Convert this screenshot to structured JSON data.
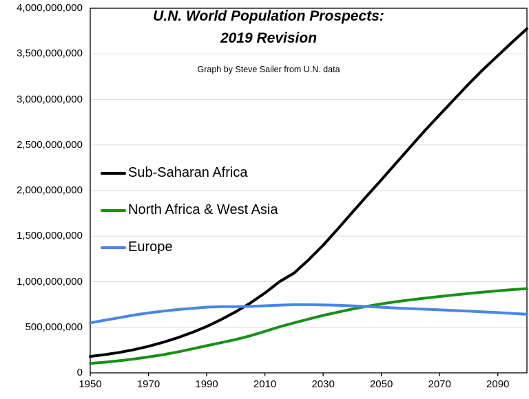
{
  "chart_data": {
    "type": "line",
    "title_line1": "U.N. World Population Prospects:",
    "title_line2": "2019 Revision",
    "subtitle": "Graph by Steve Sailer from U.N. data",
    "x": [
      1950,
      1955,
      1960,
      1965,
      1970,
      1975,
      1980,
      1985,
      1990,
      1995,
      2000,
      2005,
      2010,
      2015,
      2020,
      2025,
      2030,
      2035,
      2040,
      2045,
      2050,
      2055,
      2060,
      2065,
      2070,
      2075,
      2080,
      2085,
      2090,
      2095,
      2100
    ],
    "series": [
      {
        "name": "Sub-Saharan Africa",
        "color": "#000000",
        "values": [
          180000000,
          200000000,
          224000000,
          254000000,
          291000000,
          335000000,
          385000000,
          443000000,
          509000000,
          586000000,
          670000000,
          767000000,
          876000000,
          1000000000,
          1094000000,
          1240000000,
          1400000000,
          1578000000,
          1760000000,
          1940000000,
          2118000000,
          2300000000,
          2480000000,
          2660000000,
          2830000000,
          3000000000,
          3170000000,
          3330000000,
          3480000000,
          3630000000,
          3775000000
        ]
      },
      {
        "name": "North Africa & West Asia",
        "color": "#179117",
        "values": [
          104000000,
          117000000,
          133000000,
          152000000,
          174000000,
          199000000,
          229000000,
          263000000,
          298000000,
          331000000,
          366000000,
          407000000,
          455000000,
          505000000,
          549000000,
          590000000,
          630000000,
          666000000,
          700000000,
          730000000,
          757000000,
          780000000,
          801000000,
          820000000,
          838000000,
          855000000,
          871000000,
          886000000,
          900000000,
          913000000,
          924000000
        ]
      },
      {
        "name": "Europe",
        "color": "#4a86e8",
        "values": [
          549000000,
          577000000,
          605000000,
          634000000,
          657000000,
          677000000,
          694000000,
          708000000,
          721000000,
          727000000,
          726000000,
          729000000,
          736000000,
          743000000,
          748000000,
          748000000,
          745000000,
          741000000,
          735000000,
          728000000,
          720000000,
          712000000,
          705000000,
          698000000,
          691000000,
          684000000,
          677000000,
          669000000,
          661000000,
          652000000,
          643000000
        ]
      }
    ],
    "xlim": [
      1950,
      2100
    ],
    "ylim": [
      0,
      4000000000
    ],
    "xticks": [
      1950,
      1970,
      1990,
      2010,
      2030,
      2050,
      2070,
      2090
    ],
    "ytick_step": 500000000,
    "grid": "horizontal",
    "legend_position": "left-middle",
    "colors": {
      "grid": "#d9d9d9",
      "axis": "#000000",
      "background": "#ffffff",
      "text": "#000000"
    }
  }
}
